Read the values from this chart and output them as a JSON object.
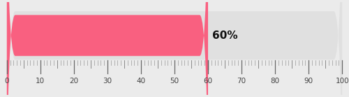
{
  "value": 60,
  "value_label": "60%",
  "x_min": 0,
  "x_max": 100,
  "bar_color": "#F96080",
  "track_color": "#E0E0E0",
  "label_fontsize": 11,
  "label_fontweight": "bold",
  "label_color": "#111111",
  "background_color": "#ebebeb",
  "tick_major_color": "#666666",
  "tick_minor_color": "#888888",
  "tick_small_color": "#999999",
  "axis_label_color": "#444444",
  "axis_label_fontsize": 7.5,
  "figsize": [
    5.0,
    1.4
  ],
  "dpi": 100
}
